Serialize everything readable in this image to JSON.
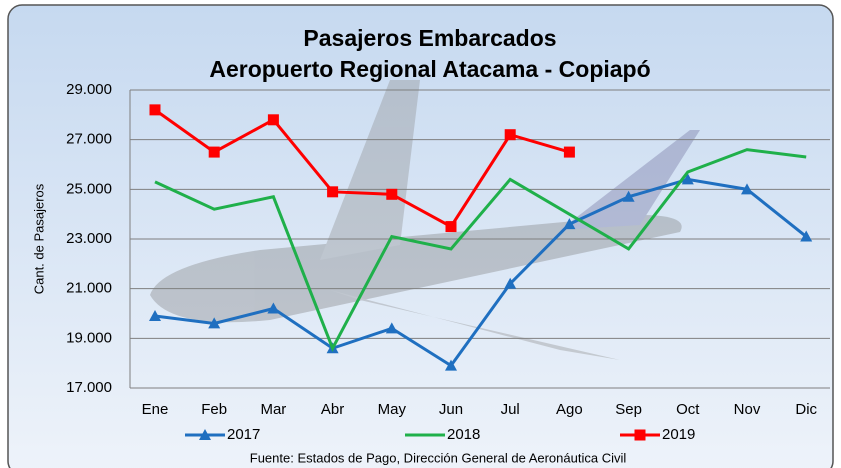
{
  "chart_data": {
    "type": "line",
    "title": "Pasajeros Embarcados",
    "subtitle": "Aeropuerto Regional Atacama - Copiapó",
    "y_label": "Cant. de Pasajeros",
    "source": "Fuente: Estados de Pago, Dirección General de Aeronáutica Civil",
    "categories": [
      "Ene",
      "Feb",
      "Mar",
      "Abr",
      "May",
      "Jun",
      "Jul",
      "Ago",
      "Sep",
      "Oct",
      "Nov",
      "Dic"
    ],
    "series": [
      {
        "name": "2017",
        "color": "#1f6fc0",
        "marker": "triangle",
        "values": [
          19900,
          19600,
          20200,
          18600,
          19400,
          17900,
          21200,
          23600,
          24700,
          25400,
          25000,
          23100
        ]
      },
      {
        "name": "2018",
        "color": "#1fb04a",
        "marker": "none",
        "values": [
          25300,
          24200,
          24700,
          18600,
          23100,
          22600,
          25400,
          24000,
          22600,
          25700,
          26600,
          26300
        ]
      },
      {
        "name": "2019",
        "color": "#ff0000",
        "marker": "square",
        "values": [
          28200,
          26500,
          27800,
          24900,
          24800,
          23500,
          27200,
          26500,
          null,
          null,
          null,
          null
        ]
      }
    ],
    "ylim": [
      17000,
      29000
    ],
    "yticks": [
      {
        "value": 17000,
        "label": "17.000"
      },
      {
        "value": 19000,
        "label": "19.000"
      },
      {
        "value": 21000,
        "label": "21.000"
      },
      {
        "value": 23000,
        "label": "23.000"
      },
      {
        "value": 25000,
        "label": "25.000"
      },
      {
        "value": 27000,
        "label": "27.000"
      },
      {
        "value": 29000,
        "label": "29.000"
      }
    ],
    "grid": true
  }
}
